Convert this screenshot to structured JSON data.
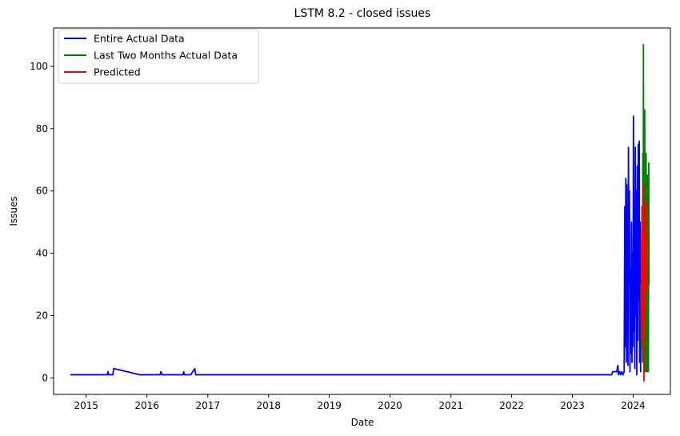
{
  "chart_data": {
    "type": "line",
    "title": "LSTM 8.2 - closed issues",
    "xlabel": "Date",
    "ylabel": "Issues",
    "x_axis": "date",
    "xlim": [
      "2014-06-19",
      "2024-08-12"
    ],
    "ylim": [
      -5.3,
      112.3
    ],
    "x_ticks": [
      "2015",
      "2016",
      "2017",
      "2018",
      "2019",
      "2020",
      "2021",
      "2022",
      "2023",
      "2024"
    ],
    "y_ticks": [
      0,
      20,
      40,
      60,
      80,
      100
    ],
    "grid": false,
    "legend": "top-left",
    "series": [
      {
        "name": "Entire Actual Data",
        "color": "#0000ff",
        "points": [
          [
            "2014-10-01",
            1
          ],
          [
            "2015-05-08",
            1
          ],
          [
            "2015-05-12",
            2
          ],
          [
            "2015-05-17",
            1
          ],
          [
            "2015-06-10",
            1
          ],
          [
            "2015-06-15",
            3
          ],
          [
            "2015-11-20",
            1
          ],
          [
            "2016-03-20",
            1
          ],
          [
            "2016-03-25",
            2
          ],
          [
            "2016-04-02",
            1
          ],
          [
            "2016-08-05",
            1
          ],
          [
            "2016-08-09",
            2
          ],
          [
            "2016-08-13",
            1
          ],
          [
            "2016-09-20",
            1
          ],
          [
            "2016-10-15",
            3
          ],
          [
            "2016-10-20",
            1
          ],
          [
            "2023-08-25",
            1
          ],
          [
            "2023-09-01",
            2
          ],
          [
            "2023-09-25",
            2
          ],
          [
            "2023-10-01",
            4
          ],
          [
            "2023-10-05",
            1
          ],
          [
            "2023-10-12",
            2
          ],
          [
            "2023-10-18",
            1
          ],
          [
            "2023-10-25",
            2
          ],
          [
            "2023-11-01",
            1
          ],
          [
            "2023-11-08",
            2
          ],
          [
            "2023-11-12",
            55
          ],
          [
            "2023-11-15",
            10
          ],
          [
            "2023-11-18",
            64
          ],
          [
            "2023-11-21",
            5
          ],
          [
            "2023-11-24",
            62
          ],
          [
            "2023-11-26",
            20
          ],
          [
            "2023-11-28",
            48
          ],
          [
            "2023-12-01",
            4
          ],
          [
            "2023-12-04",
            74
          ],
          [
            "2023-12-07",
            30
          ],
          [
            "2023-12-10",
            60
          ],
          [
            "2023-12-13",
            2
          ],
          [
            "2023-12-16",
            35
          ],
          [
            "2023-12-19",
            8
          ],
          [
            "2023-12-22",
            50
          ],
          [
            "2023-12-25",
            5
          ],
          [
            "2023-12-28",
            40
          ],
          [
            "2023-12-31",
            10
          ],
          [
            "2024-01-03",
            84
          ],
          [
            "2024-01-06",
            15
          ],
          [
            "2024-01-08",
            55
          ],
          [
            "2024-01-11",
            3
          ],
          [
            "2024-01-14",
            74
          ],
          [
            "2024-01-17",
            20
          ],
          [
            "2024-01-20",
            60
          ],
          [
            "2024-01-23",
            1
          ],
          [
            "2024-01-26",
            68
          ],
          [
            "2024-01-29",
            12
          ],
          [
            "2024-02-01",
            75
          ],
          [
            "2024-02-04",
            25
          ],
          [
            "2024-02-07",
            76
          ],
          [
            "2024-02-09",
            5
          ],
          [
            "2024-02-12",
            50
          ],
          [
            "2024-02-15",
            2
          ],
          [
            "2024-02-17",
            30
          ]
        ]
      },
      {
        "name": "Last Two Months Actual Data",
        "color": "#008000",
        "points": [
          [
            "2024-02-17",
            30
          ],
          [
            "2024-02-20",
            10
          ],
          [
            "2024-02-23",
            55
          ],
          [
            "2024-02-26",
            5
          ],
          [
            "2024-02-28",
            72
          ],
          [
            "2024-03-01",
            8
          ],
          [
            "2024-03-03",
            107
          ],
          [
            "2024-03-05",
            15
          ],
          [
            "2024-03-07",
            80
          ],
          [
            "2024-03-09",
            2
          ],
          [
            "2024-03-11",
            86
          ],
          [
            "2024-03-13",
            12
          ],
          [
            "2024-03-15",
            60
          ],
          [
            "2024-03-17",
            2
          ],
          [
            "2024-03-19",
            72
          ],
          [
            "2024-03-21",
            20
          ],
          [
            "2024-03-23",
            55
          ],
          [
            "2024-03-25",
            2
          ],
          [
            "2024-03-27",
            65
          ],
          [
            "2024-03-29",
            25
          ],
          [
            "2024-03-31",
            50
          ],
          [
            "2024-04-02",
            2
          ],
          [
            "2024-04-04",
            69
          ],
          [
            "2024-04-06",
            30
          ]
        ]
      },
      {
        "name": "Predicted",
        "color": "#ff0000",
        "points": [
          [
            "2024-02-20",
            18
          ],
          [
            "2024-02-22",
            48
          ],
          [
            "2024-02-24",
            12
          ],
          [
            "2024-02-26",
            55
          ],
          [
            "2024-02-28",
            20
          ],
          [
            "2024-03-01",
            62
          ],
          [
            "2024-03-03",
            8
          ],
          [
            "2024-03-05",
            45
          ],
          [
            "2024-03-06",
            -1
          ],
          [
            "2024-03-08",
            40
          ],
          [
            "2024-03-10",
            15
          ],
          [
            "2024-03-12",
            55
          ],
          [
            "2024-03-14",
            22
          ],
          [
            "2024-03-16",
            50
          ],
          [
            "2024-03-18",
            35
          ],
          [
            "2024-03-20",
            57
          ],
          [
            "2024-03-22",
            28
          ],
          [
            "2024-03-24",
            45
          ]
        ]
      }
    ]
  }
}
